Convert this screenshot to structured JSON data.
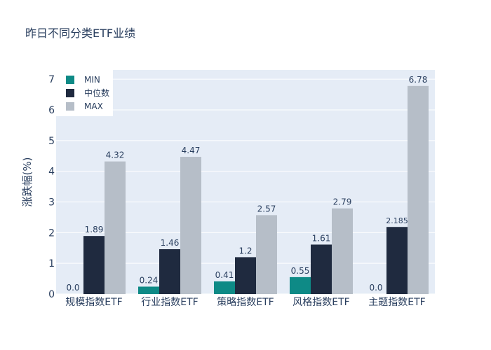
{
  "chart_data": {
    "type": "bar",
    "title": "昨日不同分类ETF业绩",
    "ylabel": "涨跌幅(%)",
    "categories": [
      "规模指数ETF",
      "行业指数ETF",
      "策略指数ETF",
      "风格指数ETF",
      "主题指数ETF"
    ],
    "series": [
      {
        "name": "MIN",
        "values": [
          0.0,
          0.24,
          0.41,
          0.55,
          0.0
        ],
        "labels": [
          "0.0",
          "0.24",
          "0.41",
          "0.55",
          "0.0"
        ],
        "color": "#0e8a86"
      },
      {
        "name": "中位数",
        "values": [
          1.89,
          1.46,
          1.2,
          1.61,
          2.185
        ],
        "labels": [
          "1.89",
          "1.46",
          "1.2",
          "1.61",
          "2.185"
        ],
        "color": "#1f2a3f"
      },
      {
        "name": "MAX",
        "values": [
          4.32,
          4.47,
          2.57,
          2.79,
          6.78
        ],
        "labels": [
          "4.32",
          "4.47",
          "2.57",
          "2.79",
          "6.78"
        ],
        "color": "#b6bec8"
      }
    ],
    "yticks": [
      0,
      1,
      2,
      3,
      4,
      5,
      6,
      7
    ],
    "ylim": [
      0,
      7.3
    ],
    "grid": true,
    "legend_position": "top-left"
  },
  "colors": {
    "plot_bg": "#e5ecf6",
    "grid": "#ffffff"
  }
}
